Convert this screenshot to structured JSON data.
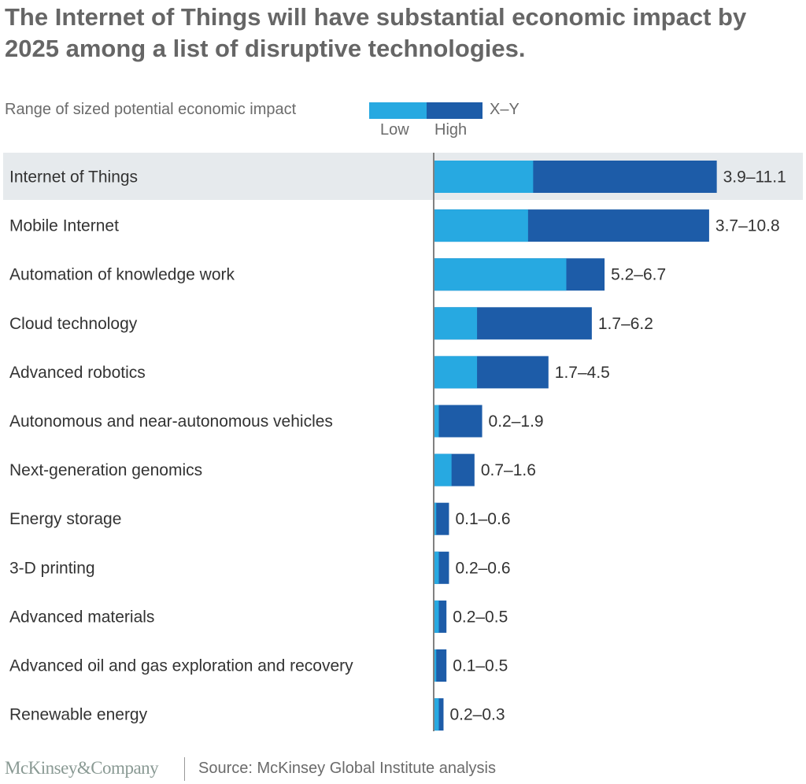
{
  "chart_data": {
    "type": "bar",
    "title": "The Internet of Things will have substantial economic impact by 2025 among a list of disruptive technologies.",
    "legend": {
      "label": "Range of sized potential economic impact",
      "format_label": "X–Y",
      "low_label": "Low",
      "high_label": "High",
      "placement": "top-left"
    },
    "colors": {
      "low": "#27a9e1",
      "high": "#1d5ca8",
      "highlight": "#e6eaed",
      "text": "#333333"
    },
    "highlighted_category": "Internet of Things",
    "categories": [
      "Internet of Things",
      "Mobile Internet",
      "Automation of knowledge work",
      "Cloud technology",
      "Advanced robotics",
      "Autonomous and near-autonomous vehicles",
      "Next-generation genomics",
      "Energy storage",
      "3-D printing",
      "Advanced materials",
      "Advanced oil and gas exploration and recovery",
      "Renewable energy"
    ],
    "series": [
      {
        "name": "Low",
        "values": [
          3.9,
          3.7,
          5.2,
          1.7,
          1.7,
          0.2,
          0.7,
          0.1,
          0.2,
          0.2,
          0.1,
          0.2
        ]
      },
      {
        "name": "High",
        "values": [
          11.1,
          10.8,
          6.7,
          6.2,
          4.5,
          1.9,
          1.6,
          0.6,
          0.6,
          0.5,
          0.5,
          0.3
        ]
      }
    ],
    "data_labels": [
      "3.9–11.1",
      "3.7–10.8",
      "5.2–6.7",
      "1.7–6.2",
      "1.7–4.5",
      "0.2–1.9",
      "0.7–1.6",
      "0.1–0.6",
      "0.2–0.6",
      "0.2–0.5",
      "0.1–0.5",
      "0.2–0.3"
    ],
    "xlabel": "",
    "ylabel": "",
    "xlim": [
      0,
      11.1
    ],
    "grid": false
  },
  "footer": {
    "brand": "McKinsey&Company",
    "source": "Source: McKinsey Global Institute analysis"
  }
}
